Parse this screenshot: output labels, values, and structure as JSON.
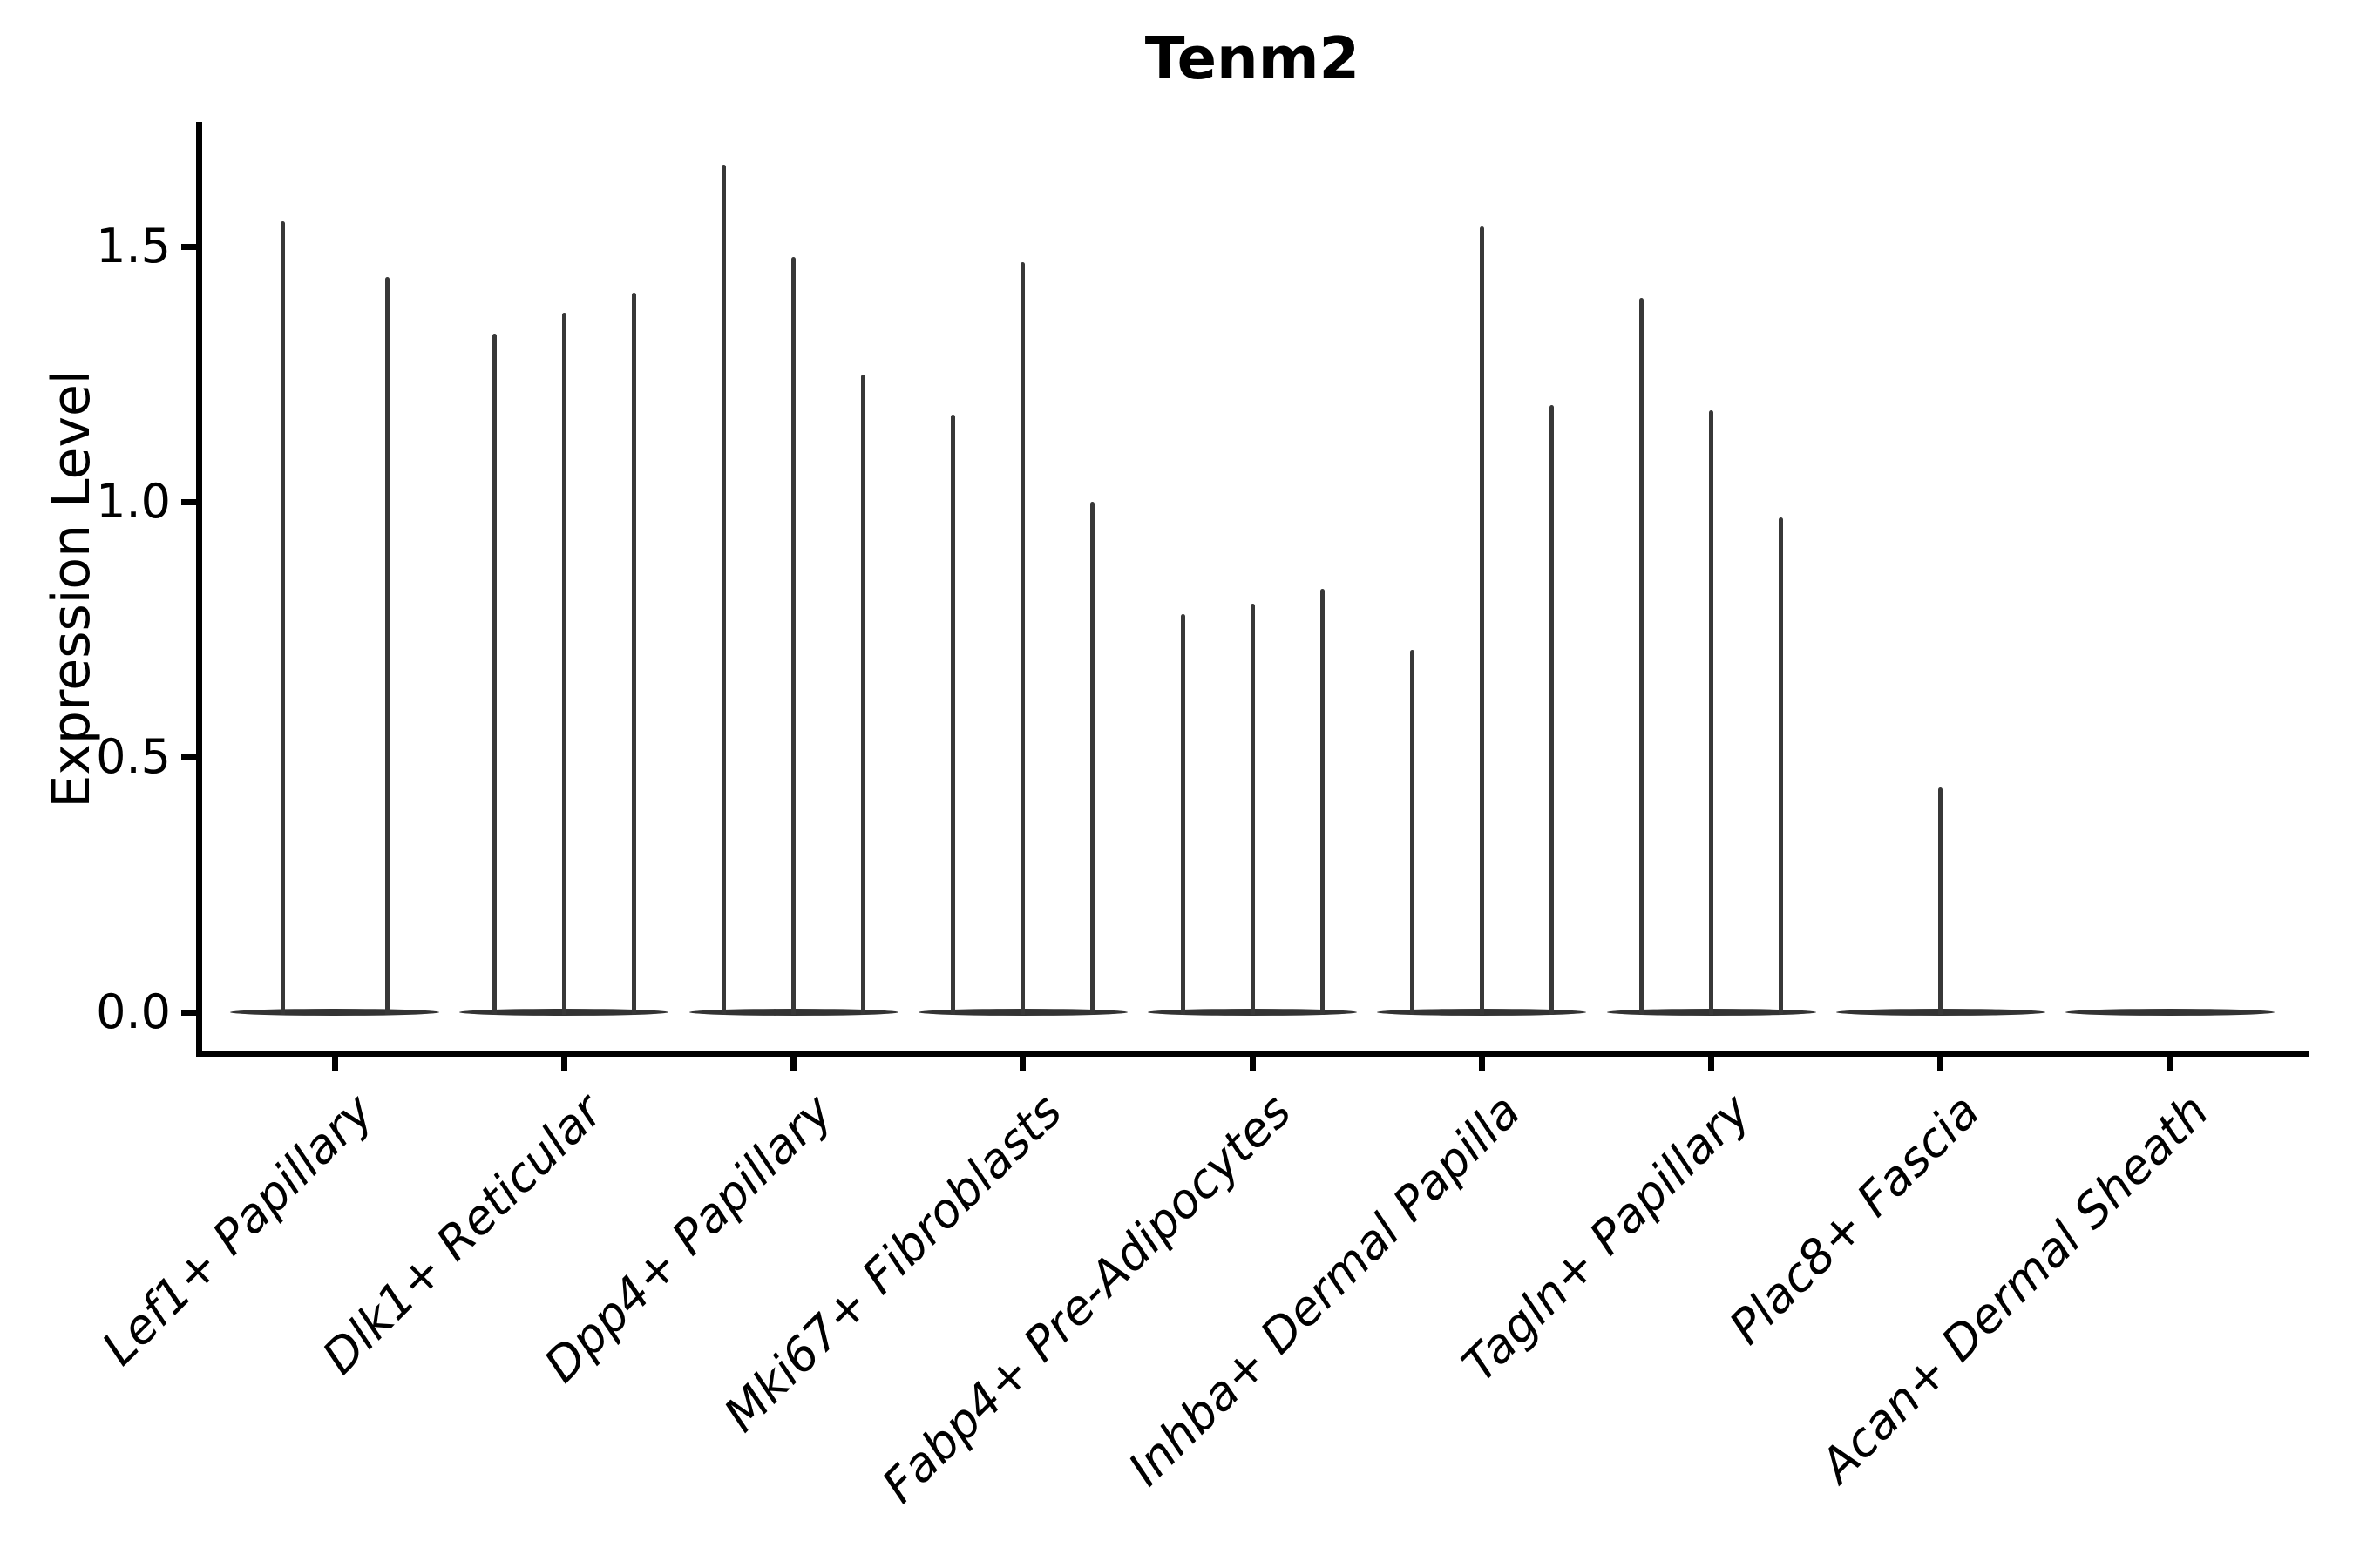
{
  "figure": {
    "title": "Tenm2",
    "y_axis": {
      "label": "Expression Level",
      "tick_labels": [
        "0.0",
        "0.5",
        "1.0",
        "1.5"
      ]
    },
    "x_axis": {
      "labels": [
        "Lef1+ Papillary",
        "Dlk1+ Reticular",
        "Dpp4+ Papillary",
        "Mki67+ Fibroblasts",
        "Fabp4+ Pre-Adipocytes",
        "Inhba+ Dermal Papilla",
        "Tagln+ Papillary",
        "Plac8+ Fascia",
        "Acan+ Dermal Sheath"
      ]
    }
  },
  "chart_data": {
    "type": "violin",
    "title": "Tenm2",
    "xlabel": "",
    "ylabel": "Expression Level",
    "ylim": [
      -0.08,
      1.74
    ],
    "yticks": [
      0.0,
      0.5,
      1.0,
      1.5
    ],
    "ytick_labels": [
      "0.0",
      "0.5",
      "1.0",
      "1.5"
    ],
    "grid": false,
    "legend": false,
    "shape_note": "each violin is a flat wide body at expression 0 with a very thin vertical tail (spike) reaching up to its maximum expression value",
    "categories": [
      "Lef1+ Papillary",
      "Dlk1+ Reticular",
      "Dpp4+ Papillary",
      "Mki67+ Fibroblasts",
      "Fabp4+ Pre-Adipocytes",
      "Inhba+ Dermal Papilla",
      "Tagln+ Papillary",
      "Plac8+ Fascia",
      "Acan+ Dermal Sheath"
    ],
    "groups": [
      {
        "category": "Lef1+ Papillary",
        "violin_max_values": [
          1.55,
          1.44
        ]
      },
      {
        "category": "Dlk1+ Reticular",
        "violin_max_values": [
          1.33,
          1.37,
          1.41
        ]
      },
      {
        "category": "Dpp4+ Papillary",
        "violin_max_values": [
          1.66,
          1.48,
          1.25
        ]
      },
      {
        "category": "Mki67+ Fibroblasts",
        "violin_max_values": [
          1.17,
          1.47,
          1.0
        ]
      },
      {
        "category": "Fabp4+ Pre-Adipocytes",
        "violin_max_values": [
          0.78,
          0.8,
          0.83
        ]
      },
      {
        "category": "Inhba+ Dermal Papilla",
        "violin_max_values": [
          0.71,
          1.54,
          1.19
        ]
      },
      {
        "category": "Tagln+ Papillary",
        "violin_max_values": [
          1.4,
          1.18,
          0.97
        ]
      },
      {
        "category": "Plac8+ Fascia",
        "violin_max_values": [
          0.0,
          0.44,
          0.0
        ]
      },
      {
        "category": "Acan+ Dermal Sheath",
        "violin_max_values": [
          0.0,
          0.0,
          0.0
        ]
      }
    ],
    "colors": {
      "violin": "#383838",
      "violin_base": "#333333",
      "axis": "#000000",
      "text": "#000000",
      "background": "#ffffff"
    }
  }
}
